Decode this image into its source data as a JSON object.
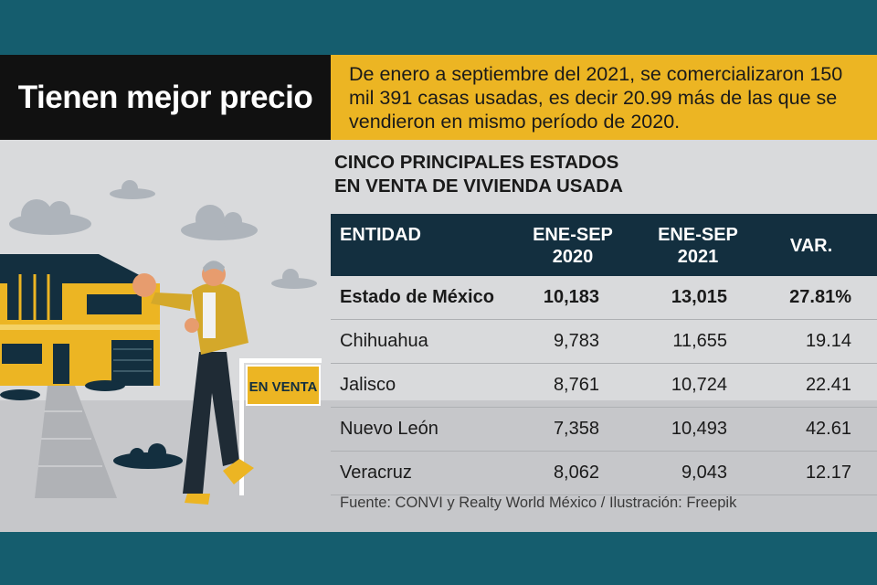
{
  "header": {
    "title": "Tienen mejor precio",
    "intro": "De enero a septiembre del 2021, se comercializaron 150 mil 391 casas usadas, es decir 20.99 más de las que se vendieron en mismo período de 2020."
  },
  "illustration": {
    "sign_label": "EN VENTA"
  },
  "chart_data": {
    "type": "table",
    "title_line1": "CINCO PRINCIPALES ESTADOS",
    "title_line2": "EN VENTA DE VIVIENDA USADA",
    "columns": [
      "ENTIDAD",
      "ENE-SEP 2020",
      "ENE-SEP 2021",
      "VAR."
    ],
    "column_header_lines": [
      [
        "ENTIDAD"
      ],
      [
        "ENE-SEP",
        "2020"
      ],
      [
        "ENE-SEP",
        "2021"
      ],
      [
        "VAR."
      ]
    ],
    "rows": [
      {
        "entidad": "Estado de México",
        "v2020": "10,183",
        "v2021": "13,015",
        "var": "27.81%",
        "highlight": true
      },
      {
        "entidad": "Chihuahua",
        "v2020": "9,783",
        "v2021": "11,655",
        "var": "19.14",
        "highlight": false
      },
      {
        "entidad": "Jalisco",
        "v2020": "8,761",
        "v2021": "10,724",
        "var": "22.41",
        "highlight": false
      },
      {
        "entidad": "Nuevo León",
        "v2020": "7,358",
        "v2021": "10,493",
        "var": "42.61",
        "highlight": false
      },
      {
        "entidad": "Veracruz",
        "v2020": "8,062",
        "v2021": "9,043",
        "var": "12.17",
        "highlight": false
      }
    ]
  },
  "footer": {
    "source": "Fuente: CONVI y Realty World México / Ilustración: Freepik"
  },
  "colors": {
    "accent_yellow": "#ecb523",
    "dark_navy": "#132f3f",
    "teal_band": "#155d6e",
    "panel_gray": "#d9dadc"
  }
}
